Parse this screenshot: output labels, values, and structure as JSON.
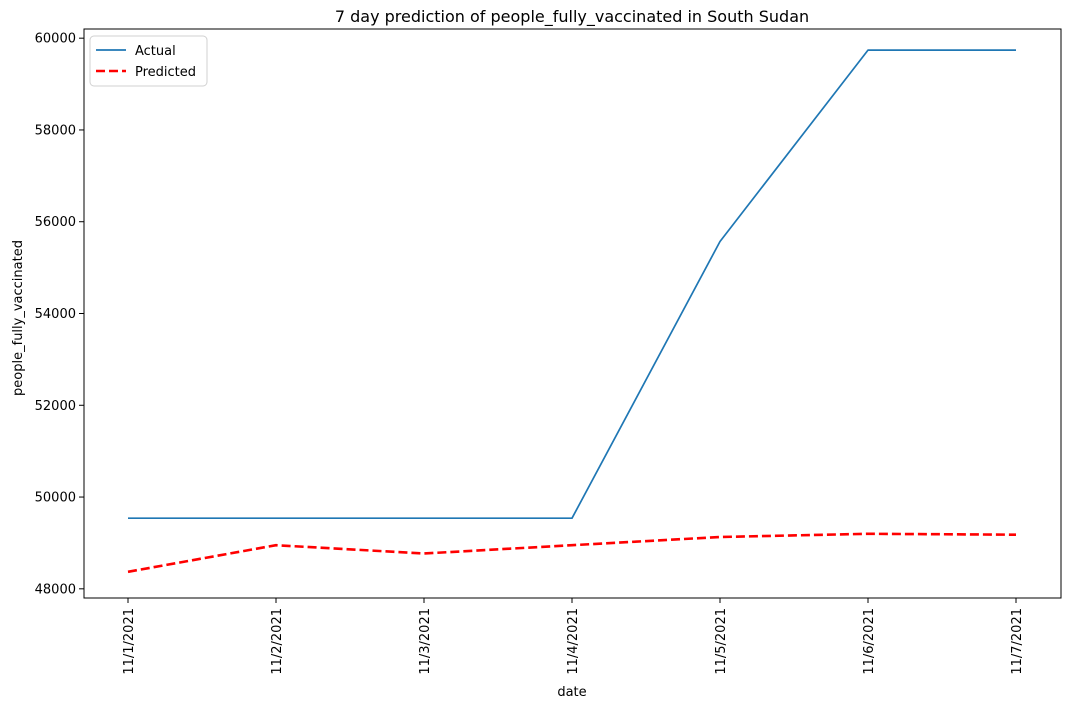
{
  "chart_data": {
    "type": "line",
    "title": "7 day prediction of people_fully_vaccinated in South Sudan",
    "xlabel": "date",
    "ylabel": "people_fully_vaccinated",
    "x": [
      "11/1/2021",
      "11/2/2021",
      "11/3/2021",
      "11/4/2021",
      "11/5/2021",
      "11/6/2021",
      "11/7/2021"
    ],
    "ylim": [
      47800,
      60200
    ],
    "yticks": [
      48000,
      50000,
      52000,
      54000,
      56000,
      58000,
      60000
    ],
    "grid": false,
    "legend_position": "top-left",
    "series": [
      {
        "name": "Actual",
        "color": "#1f77b4",
        "style": "solid",
        "values": [
          49540,
          49540,
          49540,
          49540,
          55570,
          59740,
          59740
        ]
      },
      {
        "name": "Predicted",
        "color": "#ff0000",
        "style": "dashed",
        "values": [
          48370,
          48950,
          48770,
          48950,
          49130,
          49200,
          49180
        ]
      }
    ]
  }
}
